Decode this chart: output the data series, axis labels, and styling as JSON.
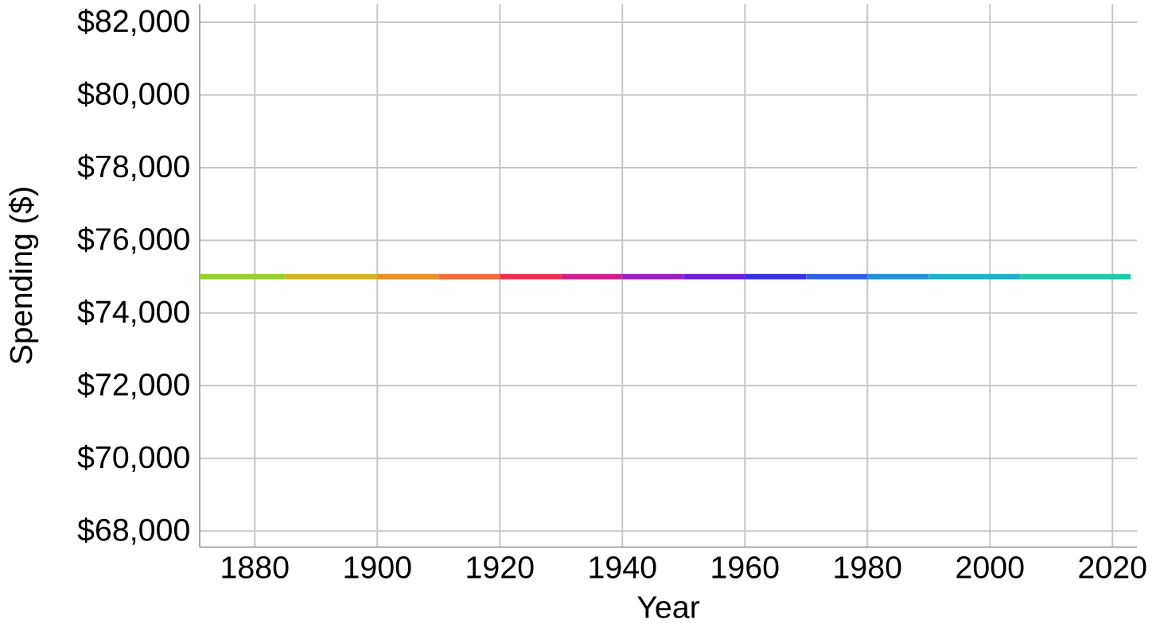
{
  "chart_data": {
    "type": "line",
    "xlabel": "Year",
    "ylabel": "Spending ($)",
    "xlim": [
      1871,
      2024
    ],
    "xticks": [
      1880,
      1900,
      1920,
      1940,
      1960,
      1980,
      2000,
      2020
    ],
    "ylim": [
      67560,
      82500
    ],
    "yticks": [
      {
        "value": 68000,
        "label": "$68,000"
      },
      {
        "value": 70000,
        "label": "$70,000"
      },
      {
        "value": 72000,
        "label": "$72,000"
      },
      {
        "value": 74000,
        "label": "$74,000"
      },
      {
        "value": 76000,
        "label": "$76,000"
      },
      {
        "value": 78000,
        "label": "$78,000"
      },
      {
        "value": 80000,
        "label": "$80,000"
      },
      {
        "value": 82000,
        "label": "$82,000"
      }
    ],
    "grid": true,
    "marker": "none",
    "line_style": "solid",
    "series": [
      {
        "color": "#9acd32",
        "x": [
          1871,
          1885
        ],
        "values": [
          75000,
          75000
        ]
      },
      {
        "color": "#d2b424",
        "x": [
          1885,
          1900
        ],
        "values": [
          75000,
          75000
        ]
      },
      {
        "color": "#e8902a",
        "x": [
          1900,
          1910
        ],
        "values": [
          75000,
          75000
        ]
      },
      {
        "color": "#f06a3a",
        "x": [
          1910,
          1920
        ],
        "values": [
          75000,
          75000
        ]
      },
      {
        "color": "#ee3050",
        "x": [
          1920,
          1930
        ],
        "values": [
          75000,
          75000
        ]
      },
      {
        "color": "#d0208a",
        "x": [
          1930,
          1940
        ],
        "values": [
          75000,
          75000
        ]
      },
      {
        "color": "#9a20c0",
        "x": [
          1940,
          1950
        ],
        "values": [
          75000,
          75000
        ]
      },
      {
        "color": "#6a20d8",
        "x": [
          1950,
          1960
        ],
        "values": [
          75000,
          75000
        ]
      },
      {
        "color": "#3a30e0",
        "x": [
          1960,
          1970
        ],
        "values": [
          75000,
          75000
        ]
      },
      {
        "color": "#3060e0",
        "x": [
          1970,
          1980
        ],
        "values": [
          75000,
          75000
        ]
      },
      {
        "color": "#2090d8",
        "x": [
          1980,
          1990
        ],
        "values": [
          75000,
          75000
        ]
      },
      {
        "color": "#20b0c8",
        "x": [
          1990,
          2005
        ],
        "values": [
          75000,
          75000
        ]
      },
      {
        "color": "#20c8a8",
        "x": [
          2005,
          2023
        ],
        "values": [
          75000,
          75000
        ]
      }
    ]
  }
}
